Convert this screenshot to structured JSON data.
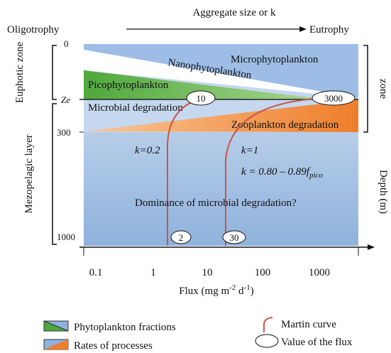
{
  "header": {
    "title": "Aggregate size or k",
    "left": "Oligotrophy",
    "right": "Eutrophy"
  },
  "left_axis": {
    "upper_zone": "Euphotic zone",
    "lower_zone": "Mezopelagic layer",
    "ticks": [
      "0",
      "Ze",
      "300",
      "1000"
    ]
  },
  "right_axis": {
    "zone": "zone",
    "label": "Depth (m)"
  },
  "regions": {
    "micro": "Microphytoplankton",
    "nano": "Nanophytoplankton",
    "pico": "Picophytoplankton",
    "microbial": "Microbial degradation",
    "zoo": "Zooplankton degradation"
  },
  "curves": {
    "k1": "k=0.2",
    "k2": "k=1",
    "formula": {
      "main": "k = 0.80 – 0.89f",
      "sub": "pico"
    },
    "question": "Dominance of microbial degradation?"
  },
  "flux_values": [
    "10",
    "3000",
    "2",
    "30"
  ],
  "x_axis": {
    "ticks": [
      "0.1",
      "1",
      "10",
      "100",
      "1000"
    ],
    "label": {
      "a": "Flux (mg m",
      "b": "-2",
      "c": " d",
      "d": "-1",
      "e": ")"
    }
  },
  "legend": {
    "phyto": "Phytoplankton fractions",
    "rates": "Rates of processes",
    "martin": "Martin curve",
    "flux": "Value of the flux"
  }
}
